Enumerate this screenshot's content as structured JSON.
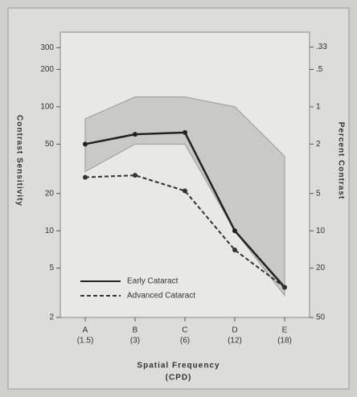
{
  "chart_data": {
    "type": "line",
    "x_label": "Spatial Frequency",
    "x_unit": "(CPD)",
    "y_label": "Contrast Sensitivity",
    "y2_label": "Percent Contrast",
    "categories": [
      "A",
      "B",
      "C",
      "D",
      "E"
    ],
    "subcategories": [
      "(1.5)",
      "(3)",
      "(6)",
      "(12)",
      "(18)"
    ],
    "log_scale": true,
    "ylim": [
      2,
      400
    ],
    "yticks": [
      300,
      200,
      100,
      50,
      20,
      10,
      5,
      2
    ],
    "y2lim": [
      50,
      0.25
    ],
    "y2ticks": [
      {
        "value": 0.33,
        "label": ".33"
      },
      {
        "value": 0.5,
        "label": ".5"
      },
      1,
      2,
      5,
      10,
      20,
      50
    ],
    "normal_range": {
      "upper": [
        80,
        120,
        120,
        100,
        40
      ],
      "lower": [
        30,
        50,
        50,
        10,
        3
      ],
      "color": "#b4b4b2"
    },
    "legend": "lower-left",
    "series": [
      {
        "name": "Early Cataract",
        "color": "#222222",
        "dash": false,
        "values": [
          50,
          60,
          62,
          10,
          3.5
        ]
      },
      {
        "name": "Advanced Cataract",
        "color": "#333333",
        "dash": true,
        "values": [
          27,
          28,
          21,
          7,
          3.5
        ]
      }
    ]
  }
}
